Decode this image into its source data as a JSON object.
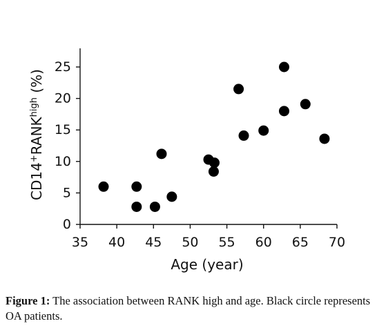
{
  "chart_data": {
    "type": "scatter",
    "xlabel": "Age (year)",
    "ylabel_main": "CD14",
    "ylabel_sup1": "+",
    "ylabel_mid": "RANK",
    "ylabel_sup2": "high",
    "ylabel_end": " (%)",
    "xlim": [
      35,
      70
    ],
    "ylim": [
      0,
      25
    ],
    "xticks": [
      35,
      40,
      45,
      50,
      55,
      60,
      65,
      70
    ],
    "yticks": [
      0,
      5,
      10,
      15,
      20,
      25
    ],
    "grid": false,
    "legend": "none",
    "point_color": "#000000",
    "series": [
      {
        "points": [
          {
            "x": 38.2,
            "y": 6.0
          },
          {
            "x": 42.7,
            "y": 6.0
          },
          {
            "x": 42.7,
            "y": 2.8
          },
          {
            "x": 45.2,
            "y": 2.8
          },
          {
            "x": 46.1,
            "y": 11.2
          },
          {
            "x": 47.5,
            "y": 4.4
          },
          {
            "x": 52.5,
            "y": 10.3
          },
          {
            "x": 53.2,
            "y": 8.4
          },
          {
            "x": 53.3,
            "y": 9.8
          },
          {
            "x": 56.6,
            "y": 21.5
          },
          {
            "x": 57.3,
            "y": 14.1
          },
          {
            "x": 60.0,
            "y": 14.9
          },
          {
            "x": 62.8,
            "y": 25.0
          },
          {
            "x": 62.8,
            "y": 18.0
          },
          {
            "x": 65.7,
            "y": 19.1
          },
          {
            "x": 68.3,
            "y": 13.6
          }
        ]
      }
    ]
  },
  "caption": {
    "label": "Figure 1:",
    "text": " The association between RANK high and age. Black circle represents OA patients."
  }
}
